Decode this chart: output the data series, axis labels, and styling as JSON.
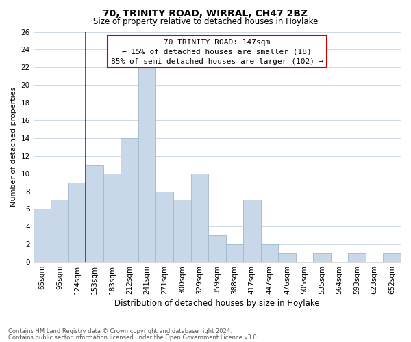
{
  "title": "70, TRINITY ROAD, WIRRAL, CH47 2BZ",
  "subtitle": "Size of property relative to detached houses in Hoylake",
  "xlabel": "Distribution of detached houses by size in Hoylake",
  "ylabel": "Number of detached properties",
  "bins": [
    "65sqm",
    "95sqm",
    "124sqm",
    "153sqm",
    "183sqm",
    "212sqm",
    "241sqm",
    "271sqm",
    "300sqm",
    "329sqm",
    "359sqm",
    "388sqm",
    "417sqm",
    "447sqm",
    "476sqm",
    "505sqm",
    "535sqm",
    "564sqm",
    "593sqm",
    "623sqm",
    "652sqm"
  ],
  "values": [
    6,
    7,
    9,
    11,
    10,
    14,
    22,
    8,
    7,
    10,
    3,
    2,
    7,
    2,
    1,
    0,
    1,
    0,
    1,
    0,
    1
  ],
  "bar_color": "#c8d8e8",
  "bar_edge_color": "#a0b8cc",
  "ref_line_bin_index": 3,
  "ref_line_color": "#cc0000",
  "annotation_line1": "70 TRINITY ROAD: 147sqm",
  "annotation_line2": "← 15% of detached houses are smaller (18)",
  "annotation_line3": "85% of semi-detached houses are larger (102) →",
  "annotation_box_color": "#ffffff",
  "annotation_box_edge": "#cc0000",
  "ylim": [
    0,
    26
  ],
  "yticks": [
    0,
    2,
    4,
    6,
    8,
    10,
    12,
    14,
    16,
    18,
    20,
    22,
    24,
    26
  ],
  "footer1": "Contains HM Land Registry data © Crown copyright and database right 2024.",
  "footer2": "Contains public sector information licensed under the Open Government Licence v3.0.",
  "bg_color": "#ffffff",
  "grid_color": "#ccd8e4",
  "title_fontsize": 10,
  "subtitle_fontsize": 8.5,
  "xlabel_fontsize": 8.5,
  "ylabel_fontsize": 8,
  "tick_fontsize": 7.5,
  "annotation_fontsize": 8,
  "footer_fontsize": 6
}
